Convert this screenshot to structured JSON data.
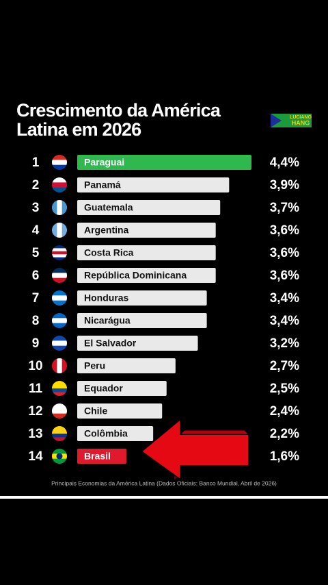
{
  "chart_data": {
    "type": "bar",
    "orientation": "horizontal",
    "title": [
      "Crescimento da América",
      "Latina em 2026"
    ],
    "logo": [
      "LUCIANO",
      "HANG"
    ],
    "ranks": [
      1,
      2,
      3,
      4,
      5,
      6,
      7,
      8,
      9,
      10,
      11,
      12,
      13,
      14
    ],
    "categories": [
      "Paraguai",
      "Panamá",
      "Guatemala",
      "Argentina",
      "Costa Rica",
      "República Dominicana",
      "Honduras",
      "Nicarágua",
      "El Salvador",
      "Peru",
      "Equador",
      "Chile",
      "Colômbia",
      "Brasil"
    ],
    "values": [
      4.4,
      3.9,
      3.7,
      3.6,
      3.6,
      3.6,
      3.4,
      3.4,
      3.2,
      2.7,
      2.5,
      2.4,
      2.2,
      1.6
    ],
    "value_labels": [
      "4,4%",
      "3,9%",
      "3,7%",
      "3,6%",
      "3,6%",
      "3,6%",
      "3,4%",
      "3,4%",
      "3,2%",
      "2,7%",
      "2,5%",
      "2,4%",
      "2,2%",
      "1,6%"
    ],
    "bar_colors": [
      "#2eb84e",
      "#e9e9e9",
      "#e9e9e9",
      "#e9e9e9",
      "#e9e9e9",
      "#e9e9e9",
      "#e9e9e9",
      "#e9e9e9",
      "#e9e9e9",
      "#e9e9e9",
      "#e9e9e9",
      "#e9e9e9",
      "#e9e9e9",
      "#e01a2c"
    ],
    "xlim": [
      0.5,
      4.4
    ],
    "footnote": "Principais Economias da América Latina (Dados Oficiais: Banco Mundial, Abril de 2026)"
  }
}
